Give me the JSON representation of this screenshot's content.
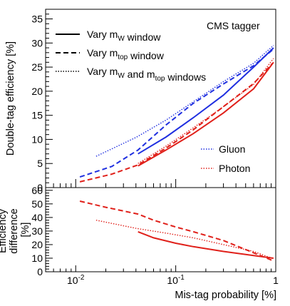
{
  "chart_data": [
    {
      "type": "line",
      "annotation": "CMS tagger",
      "ylabel": "Double-tag efficiency [%]",
      "xscale": "log",
      "xlim": [
        0.005,
        1
      ],
      "ylim": [
        0,
        37
      ],
      "yticks": [
        0,
        5,
        10,
        15,
        20,
        25,
        30,
        35
      ],
      "grid": false,
      "style_legend": [
        {
          "id": "solid",
          "prefix": "Vary m",
          "sub1": "W",
          "suffix": " window",
          "sub2": "",
          "tail": ""
        },
        {
          "id": "dashed",
          "prefix": "Vary m",
          "sub1": "top",
          "suffix": " window",
          "sub2": "",
          "tail": ""
        },
        {
          "id": "dotted",
          "prefix": "Vary m",
          "sub1": "W",
          "suffix": " and m",
          "sub2": "top",
          "tail": " windows"
        }
      ],
      "color_legend": [
        {
          "name": "Gluon",
          "color": "#1f2fe0"
        },
        {
          "name": "Photon",
          "color": "#e0201a"
        }
      ],
      "series": [
        {
          "sample": "Gluon",
          "variation": "Vary mW window",
          "style": "solid",
          "color": "#1f2fe0",
          "x": [
            0.042,
            0.08,
            0.15,
            0.3,
            0.6,
            0.95
          ],
          "y": [
            7.0,
            10.5,
            14.5,
            19.2,
            25.0,
            29.0
          ]
        },
        {
          "sample": "Gluon",
          "variation": "Vary mtop window",
          "style": "dashed",
          "color": "#1f2fe0",
          "x": [
            0.011,
            0.023,
            0.042,
            0.08,
            0.15,
            0.3,
            0.6,
            0.93
          ],
          "y": [
            2.2,
            4.4,
            7.8,
            13.0,
            17.5,
            21.5,
            25.3,
            28.6
          ]
        },
        {
          "sample": "Gluon",
          "variation": "Vary mW and mtop windows",
          "style": "dotted",
          "color": "#1f2fe0",
          "x": [
            0.016,
            0.04,
            0.08,
            0.15,
            0.3,
            0.6,
            0.95
          ],
          "y": [
            6.5,
            10.4,
            14.0,
            17.8,
            22.0,
            25.8,
            29.5
          ]
        },
        {
          "sample": "Photon",
          "variation": "Vary mW window",
          "style": "solid",
          "color": "#e0201a",
          "x": [
            0.042,
            0.08,
            0.15,
            0.3,
            0.6,
            0.95
          ],
          "y": [
            4.5,
            7.8,
            11.2,
            15.5,
            20.5,
            26.0
          ]
        },
        {
          "sample": "Photon",
          "variation": "Vary mtop window",
          "style": "dashed",
          "color": "#e0201a",
          "x": [
            0.011,
            0.023,
            0.042,
            0.08,
            0.15,
            0.3,
            0.6,
            0.93
          ],
          "y": [
            1.2,
            2.8,
            4.7,
            8.2,
            12.0,
            16.8,
            21.6,
            25.8
          ]
        },
        {
          "sample": "Photon",
          "variation": "Vary mW and mtop windows",
          "style": "dotted",
          "color": "#e0201a",
          "x": [
            0.042,
            0.08,
            0.15,
            0.3,
            0.6,
            0.95
          ],
          "y": [
            5.0,
            8.6,
            12.4,
            16.8,
            21.4,
            26.8
          ]
        }
      ]
    },
    {
      "type": "line",
      "ylabel_line1": "Efficiency",
      "ylabel_line2": "difference",
      "ylabel_unit": "[%]",
      "xlabel": "Mis-tag probability [%]",
      "xscale": "log",
      "xlim": [
        0.005,
        1
      ],
      "ylim": [
        0,
        62
      ],
      "yticks": [
        0,
        10,
        20,
        30,
        40,
        50,
        60
      ],
      "xtick_labels": [
        "10^-2",
        "10^-1",
        "1"
      ],
      "grid": false,
      "series": [
        {
          "variation": "Vary mW window",
          "style": "solid",
          "color": "#e0201a",
          "x": [
            0.042,
            0.06,
            0.1,
            0.15,
            0.3,
            0.6,
            0.95
          ],
          "y": [
            29.5,
            25.0,
            21.0,
            18.5,
            15.0,
            12.0,
            10.0
          ]
        },
        {
          "variation": "Vary mtop window",
          "style": "dashed",
          "color": "#e0201a",
          "x": [
            0.011,
            0.02,
            0.042,
            0.06,
            0.1,
            0.15,
            0.3,
            0.6,
            0.95
          ],
          "y": [
            52.0,
            47.5,
            42.5,
            38.0,
            33.0,
            29.5,
            23.0,
            14.0,
            8.0
          ]
        },
        {
          "variation": "Vary mW and mtop windows",
          "style": "dotted",
          "color": "#e0201a",
          "x": [
            0.016,
            0.04,
            0.08,
            0.15,
            0.3,
            0.6,
            0.95
          ],
          "y": [
            38.0,
            32.0,
            28.5,
            25.0,
            20.0,
            15.0,
            9.5
          ]
        }
      ]
    }
  ]
}
